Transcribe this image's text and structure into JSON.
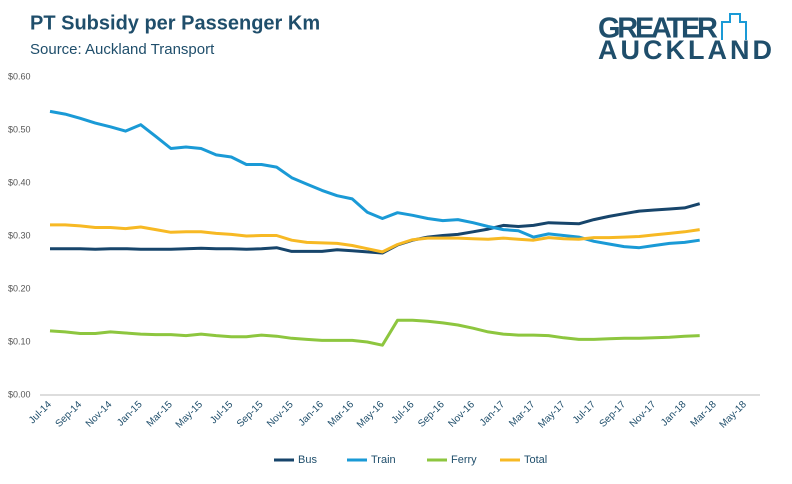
{
  "chart_data": {
    "type": "line",
    "title": "PT Subsidy per Passenger Km",
    "subtitle": "Source: Auckland Transport",
    "logo": [
      "GREATER",
      "AUCKLAND"
    ],
    "categories": [
      "Jul-14",
      null,
      "Sep-14",
      null,
      "Nov-14",
      null,
      "Jan-15",
      null,
      "Mar-15",
      null,
      "May-15",
      null,
      "Jul-15",
      null,
      "Sep-15",
      null,
      "Nov-15",
      null,
      "Jan-16",
      null,
      "Mar-16",
      null,
      "May-16",
      null,
      "Jul-16",
      null,
      "Sep-16",
      null,
      "Nov-16",
      null,
      "Jan-17",
      null,
      "Mar-17",
      null,
      "May-17",
      null,
      "Jul-17",
      null,
      "Sep-17",
      null,
      "Nov-17",
      null,
      "Jan-18",
      null,
      "Mar-18",
      null,
      "May-18"
    ],
    "series": [
      {
        "name": "Bus",
        "color": "#17456b",
        "values": [
          0.276,
          0.276,
          0.276,
          0.275,
          0.276,
          0.276,
          0.275,
          0.275,
          0.275,
          0.276,
          0.277,
          0.276,
          0.276,
          0.275,
          0.276,
          0.278,
          0.271,
          0.271,
          0.271,
          0.274,
          0.272,
          0.27,
          0.268,
          0.283,
          0.292,
          0.298,
          0.301,
          0.303,
          0.308,
          0.313,
          0.32,
          0.318,
          0.32,
          0.325,
          0.324,
          0.323,
          0.331,
          0.337,
          0.342,
          0.347,
          0.349,
          0.351,
          0.353,
          0.361,
          null,
          null,
          null
        ]
      },
      {
        "name": "Train",
        "color": "#1a9ad6",
        "values": [
          0.535,
          0.53,
          0.522,
          0.513,
          0.506,
          0.498,
          0.51,
          0.488,
          0.465,
          0.468,
          0.465,
          0.453,
          0.449,
          0.435,
          0.435,
          0.43,
          0.41,
          0.398,
          0.386,
          0.376,
          0.37,
          0.345,
          0.333,
          0.344,
          0.339,
          0.333,
          0.329,
          0.331,
          0.325,
          0.318,
          0.312,
          0.31,
          0.298,
          0.304,
          0.301,
          0.298,
          0.29,
          0.285,
          0.28,
          0.278,
          0.282,
          0.286,
          0.288,
          0.292,
          null,
          null,
          null
        ]
      },
      {
        "name": "Ferry",
        "color": "#8dc63f",
        "values": [
          0.121,
          0.119,
          0.116,
          0.116,
          0.119,
          0.117,
          0.115,
          0.114,
          0.114,
          0.112,
          0.115,
          0.112,
          0.11,
          0.11,
          0.113,
          0.111,
          0.107,
          0.105,
          0.103,
          0.103,
          0.103,
          0.1,
          0.094,
          0.141,
          0.141,
          0.139,
          0.136,
          0.132,
          0.126,
          0.119,
          0.115,
          0.113,
          0.113,
          0.112,
          0.108,
          0.105,
          0.105,
          0.106,
          0.107,
          0.107,
          0.108,
          0.109,
          0.111,
          0.112,
          null,
          null,
          null
        ]
      },
      {
        "name": "Total",
        "color": "#f7b924",
        "values": [
          0.321,
          0.321,
          0.319,
          0.316,
          0.316,
          0.314,
          0.317,
          0.312,
          0.307,
          0.308,
          0.308,
          0.305,
          0.303,
          0.3,
          0.301,
          0.301,
          0.292,
          0.288,
          0.287,
          0.286,
          0.282,
          0.276,
          0.27,
          0.284,
          0.293,
          0.296,
          0.296,
          0.296,
          0.295,
          0.294,
          0.296,
          0.294,
          0.292,
          0.297,
          0.295,
          0.294,
          0.297,
          0.297,
          0.298,
          0.299,
          0.302,
          0.305,
          0.308,
          0.312,
          null,
          null,
          null
        ]
      }
    ],
    "ylim": [
      0,
      0.6
    ],
    "yticks": [
      {
        "value": 0,
        "label": "$0.00"
      },
      {
        "value": 0.1,
        "label": "$0.10"
      },
      {
        "value": 0.2,
        "label": "$0.20"
      },
      {
        "value": 0.3,
        "label": "$0.30"
      },
      {
        "value": 0.4,
        "label": "$0.40"
      },
      {
        "value": 0.5,
        "label": "$0.50"
      },
      {
        "value": 0.6,
        "label": "$0.60"
      }
    ],
    "legend": "bottom"
  }
}
